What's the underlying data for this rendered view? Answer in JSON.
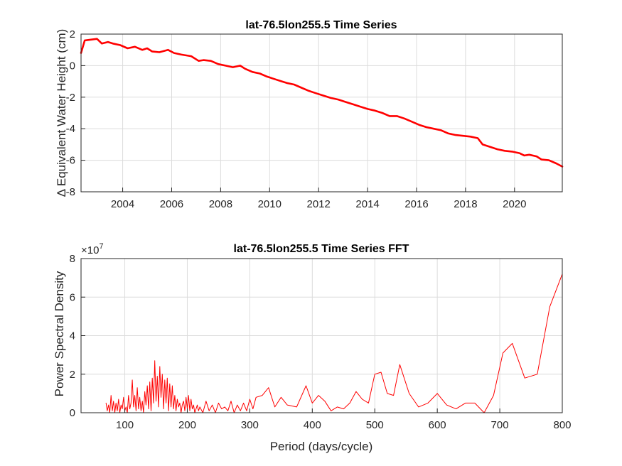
{
  "colors": {
    "series": "#ff0000",
    "axis": "#262626",
    "grid": "#dcdcdc",
    "background": "#ffffff"
  },
  "chart_data": [
    {
      "type": "line",
      "title": "lat-76.5lon255.5 Time Series",
      "xlabel": "",
      "ylabel": "Δ  Equivalent Water Height (cm)",
      "xlim": [
        2002.3,
        2021.95
      ],
      "ylim": [
        -8,
        2
      ],
      "xticks": [
        2004,
        2006,
        2008,
        2010,
        2012,
        2014,
        2016,
        2018,
        2020
      ],
      "yticks": [
        -8,
        -6,
        -4,
        -2,
        0,
        2
      ],
      "grid": true,
      "series": [
        {
          "x": [
            2002.3,
            2002.45,
            2002.7,
            2002.95,
            2003.15,
            2003.4,
            2003.6,
            2003.9,
            2004.2,
            2004.5,
            2004.8,
            2005.0,
            2005.2,
            2005.5,
            2005.85,
            2006.1,
            2006.4,
            2006.8,
            2007.1,
            2007.3,
            2007.6,
            2007.9,
            2008.2,
            2008.5,
            2008.8,
            2009.0,
            2009.3,
            2009.6,
            2009.9,
            2010.2,
            2010.5,
            2010.7,
            2011.0,
            2011.3,
            2011.6,
            2011.9,
            2012.2,
            2012.5,
            2012.8,
            2013.1,
            2013.4,
            2013.7,
            2014.0,
            2014.3,
            2014.6,
            2014.9,
            2015.2,
            2015.5,
            2015.8,
            2016.1,
            2016.4,
            2016.7,
            2017.0,
            2017.3,
            2017.6,
            2017.9,
            2018.2,
            2018.5,
            2018.7,
            2019.0,
            2019.3,
            2019.6,
            2019.9,
            2020.2,
            2020.4,
            2020.6,
            2020.9,
            2021.1,
            2021.4,
            2021.7,
            2021.95
          ],
          "y": [
            0.8,
            1.6,
            1.65,
            1.7,
            1.4,
            1.5,
            1.4,
            1.3,
            1.1,
            1.2,
            1.0,
            1.1,
            0.9,
            0.85,
            1.0,
            0.8,
            0.7,
            0.6,
            0.3,
            0.35,
            0.3,
            0.1,
            0.0,
            -0.1,
            0.0,
            -0.2,
            -0.4,
            -0.5,
            -0.7,
            -0.85,
            -1.0,
            -1.1,
            -1.2,
            -1.4,
            -1.6,
            -1.75,
            -1.9,
            -2.05,
            -2.15,
            -2.3,
            -2.45,
            -2.6,
            -2.75,
            -2.85,
            -3.0,
            -3.2,
            -3.2,
            -3.35,
            -3.55,
            -3.75,
            -3.9,
            -4.0,
            -4.1,
            -4.3,
            -4.4,
            -4.45,
            -4.5,
            -4.6,
            -5.0,
            -5.15,
            -5.3,
            -5.4,
            -5.45,
            -5.55,
            -5.7,
            -5.65,
            -5.75,
            -5.95,
            -6.0,
            -6.2,
            -6.4
          ]
        }
      ]
    },
    {
      "type": "line",
      "title": "lat-76.5lon255.5 Time Series FFT",
      "xlabel": "Period (days/cycle)",
      "ylabel": "Power Spectral Density",
      "exponent_label": "×10",
      "exponent_power": "7",
      "xlim": [
        30,
        800
      ],
      "ylim": [
        0,
        8
      ],
      "xticks": [
        100,
        200,
        300,
        400,
        500,
        600,
        700,
        800
      ],
      "yticks": [
        0,
        2,
        4,
        6,
        8
      ],
      "grid": true,
      "series": [
        {
          "x": [
            70,
            72,
            74,
            76,
            78,
            80,
            82,
            84,
            86,
            88,
            90,
            92,
            94,
            96,
            98,
            100,
            102,
            104,
            106,
            108,
            110,
            112,
            114,
            116,
            118,
            120,
            122,
            124,
            126,
            128,
            130,
            132,
            134,
            136,
            138,
            140,
            142,
            144,
            146,
            148,
            150,
            152,
            154,
            156,
            158,
            160,
            162,
            164,
            166,
            168,
            170,
            172,
            174,
            176,
            178,
            180,
            182,
            184,
            186,
            188,
            190,
            192,
            194,
            196,
            198,
            200,
            202,
            204,
            206,
            208,
            210,
            212,
            214,
            216,
            218,
            220,
            225,
            230,
            235,
            240,
            245,
            250,
            255,
            260,
            265,
            270,
            275,
            280,
            285,
            290,
            295,
            300,
            305,
            310,
            320,
            330,
            340,
            350,
            360,
            375,
            390,
            400,
            410,
            420,
            430,
            440,
            450,
            460,
            470,
            480,
            490,
            500,
            510,
            520,
            530,
            540,
            555,
            570,
            585,
            600,
            615,
            630,
            645,
            660,
            675,
            690,
            705,
            720,
            740,
            760,
            780,
            800
          ],
          "y": [
            0.5,
            0.1,
            0.4,
            0.0,
            0.9,
            0.1,
            0.6,
            0.0,
            0.5,
            0.1,
            0.7,
            0.0,
            0.4,
            0.2,
            0.8,
            0.1,
            0.3,
            0.0,
            0.9,
            0.2,
            0.5,
            1.7,
            0.3,
            0.9,
            0.1,
            1.3,
            0.2,
            0.8,
            0.1,
            0.6,
            0.0,
            1.1,
            0.4,
            1.4,
            0.2,
            1.6,
            0.1,
            1.8,
            0.5,
            2.7,
            0.6,
            1.9,
            0.3,
            2.4,
            0.8,
            2.0,
            0.2,
            1.7,
            0.5,
            1.8,
            0.1,
            1.5,
            0.3,
            1.4,
            0.2,
            0.9,
            0.1,
            0.7,
            0.3,
            0.5,
            0.0,
            0.4,
            0.6,
            0.1,
            0.8,
            0.2,
            0.9,
            0.1,
            0.7,
            0.2,
            0.4,
            0.0,
            0.2,
            0.4,
            0.1,
            0.3,
            0.0,
            0.6,
            0.1,
            0.4,
            0.0,
            0.5,
            0.2,
            0.3,
            0.1,
            0.6,
            0.0,
            0.4,
            0.1,
            0.5,
            0.1,
            0.7,
            0.2,
            0.8,
            0.9,
            1.3,
            0.3,
            0.8,
            0.4,
            0.3,
            1.4,
            0.5,
            0.9,
            0.6,
            0.1,
            0.3,
            0.2,
            0.5,
            1.1,
            0.7,
            0.5,
            2.0,
            2.1,
            1.0,
            0.9,
            2.5,
            1.0,
            0.3,
            0.5,
            1.0,
            0.4,
            0.2,
            0.5,
            0.5,
            0.0,
            0.9,
            3.1,
            3.6,
            1.8,
            2.0,
            5.5,
            7.2
          ]
        }
      ]
    }
  ]
}
